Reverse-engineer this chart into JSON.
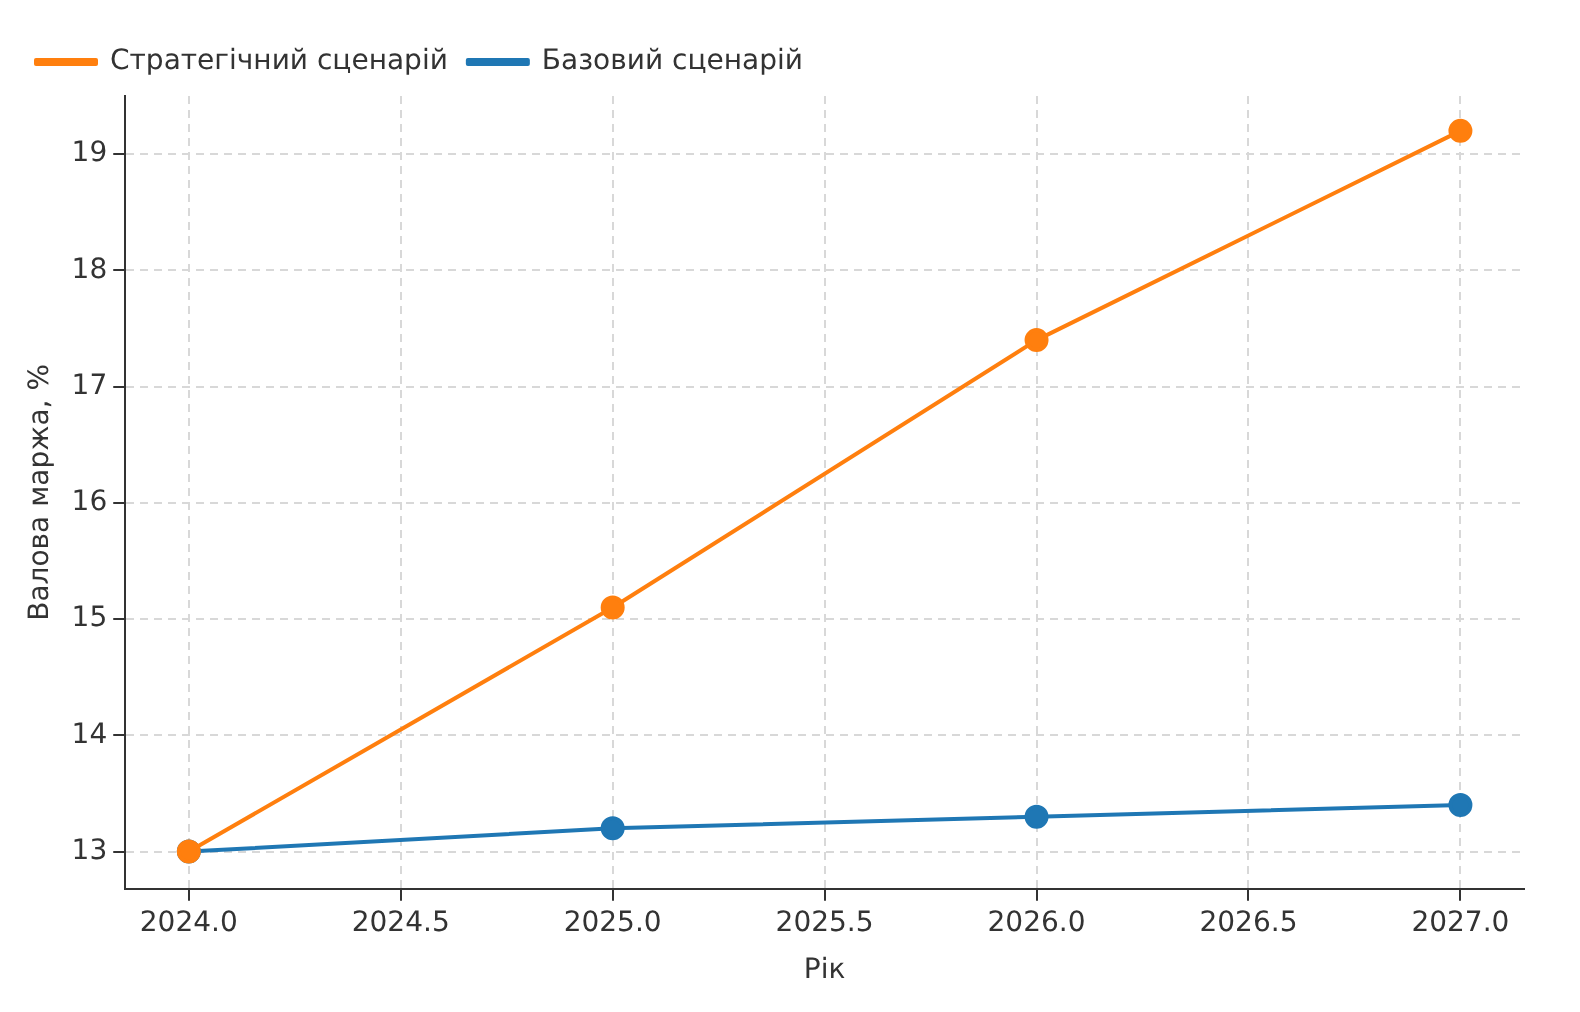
{
  "chart_data": {
    "type": "line",
    "xlabel": "Рік",
    "ylabel": "Валова маржа, %",
    "x": [
      2024,
      2025,
      2026,
      2027
    ],
    "series": [
      {
        "name": "Базовий сценарій",
        "color": "#1f77b4",
        "values": [
          13.0,
          13.2,
          13.3,
          13.4
        ]
      },
      {
        "name": "Стратегічний сценарій",
        "color": "#ff7f0e",
        "values": [
          13.0,
          15.1,
          17.4,
          19.2
        ]
      }
    ],
    "xlim": [
      2023.85,
      2027.15
    ],
    "xticks": [
      {
        "value": 2024,
        "label": "2024.0"
      },
      {
        "value": 2024.5,
        "label": "2024.5"
      },
      {
        "value": 2025,
        "label": "2025.0"
      },
      {
        "value": 2025.5,
        "label": "2025.5"
      },
      {
        "value": 2026,
        "label": "2026.0"
      },
      {
        "value": 2026.5,
        "label": "2026.5"
      },
      {
        "value": 2027,
        "label": "2027.0"
      }
    ],
    "ylim": [
      12.68,
      19.5
    ],
    "yticks": [
      13,
      14,
      15,
      16,
      17,
      18,
      19
    ],
    "grid": true,
    "legend": "top left",
    "marker": "circle",
    "line_style": "solid"
  }
}
